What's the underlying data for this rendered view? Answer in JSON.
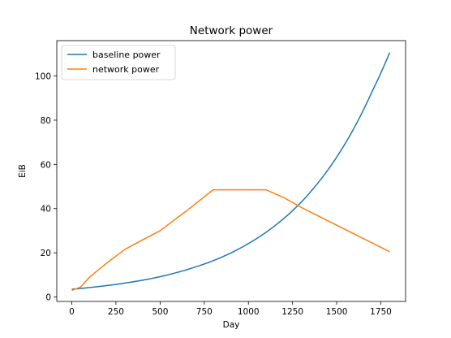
{
  "chart_data": {
    "type": "line",
    "title": "Network power",
    "xlabel": "Day",
    "ylabel": "EiB",
    "xlim": [
      -85,
      1890
    ],
    "ylim": [
      -2,
      116
    ],
    "xticks": [
      0,
      250,
      500,
      750,
      1000,
      1250,
      1500,
      1750
    ],
    "yticks": [
      0,
      20,
      40,
      60,
      80,
      100
    ],
    "grid": false,
    "legend": {
      "placement": "top-left"
    },
    "series": [
      {
        "name": "baseline power",
        "color": "#1f77b4",
        "curve": "exponential",
        "x": [
          0,
          100,
          200,
          300,
          400,
          500,
          600,
          700,
          800,
          900,
          1000,
          1100,
          1200,
          1300,
          1400,
          1500,
          1600,
          1700,
          1800
        ],
        "y": [
          3.5,
          4.3,
          5.2,
          6.3,
          7.6,
          9.2,
          11.2,
          13.6,
          16.4,
          19.9,
          24.2,
          29.3,
          35.5,
          43.0,
          52.2,
          63.3,
          76.7,
          92.9,
          110.6
        ]
      },
      {
        "name": "network power",
        "color": "#ff7f0e",
        "curve": "linear",
        "x": [
          0,
          50,
          100,
          200,
          300,
          380,
          500,
          650,
          800,
          950,
          1100,
          1200,
          1300,
          1400,
          1500,
          1600,
          1700,
          1800
        ],
        "y": [
          3,
          4.5,
          9.0,
          15.5,
          21.5,
          25.0,
          30.0,
          39.0,
          48.5,
          48.5,
          48.5,
          45.0,
          40.5,
          36.5,
          32.5,
          28.5,
          24.5,
          20.5
        ]
      }
    ]
  }
}
